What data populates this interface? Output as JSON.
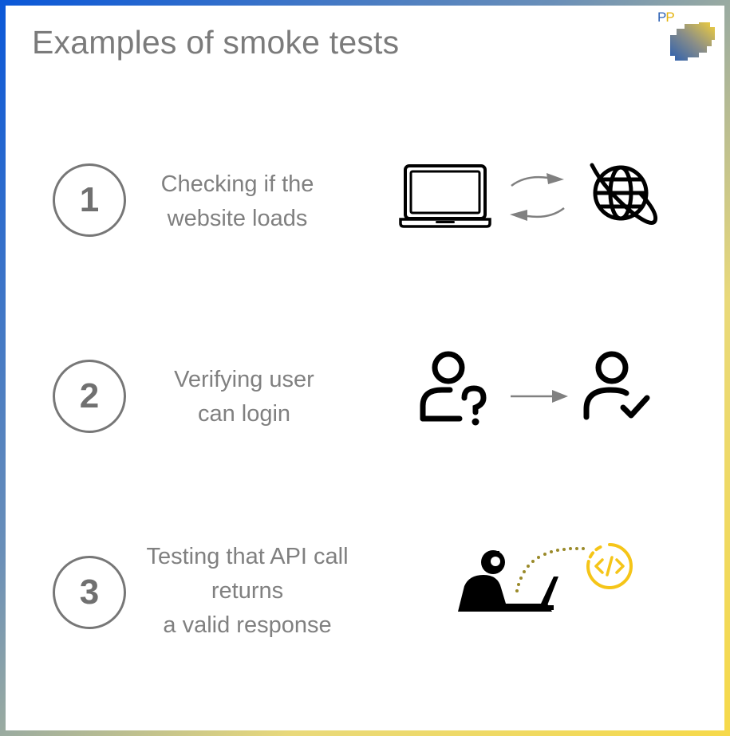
{
  "title": "Examples of smoke tests",
  "logo": {
    "text_p1": "P",
    "text_p2": "P"
  },
  "colors": {
    "frame_blue": "#0a57d8",
    "frame_yellow": "#f6d94a",
    "text_gray": "#7b7b7b",
    "arrow_gray": "#808080",
    "icon_black": "#000000",
    "code_accent": "#f5c518",
    "dot_olive": "#9a8a2a"
  },
  "steps": [
    {
      "number": "1",
      "lines": [
        "Checking if the",
        "website loads"
      ],
      "icons": [
        "laptop-icon",
        "sync-arrows-icon",
        "globe-icon"
      ]
    },
    {
      "number": "2",
      "lines": [
        "Verifying user",
        "can login"
      ],
      "icons": [
        "user-question-icon",
        "arrow-right-icon",
        "user-check-icon"
      ]
    },
    {
      "number": "3",
      "lines": [
        "Testing that API call",
        "returns",
        "a valid response"
      ],
      "icons": [
        "developer-at-laptop-icon",
        "code-icon"
      ]
    }
  ]
}
